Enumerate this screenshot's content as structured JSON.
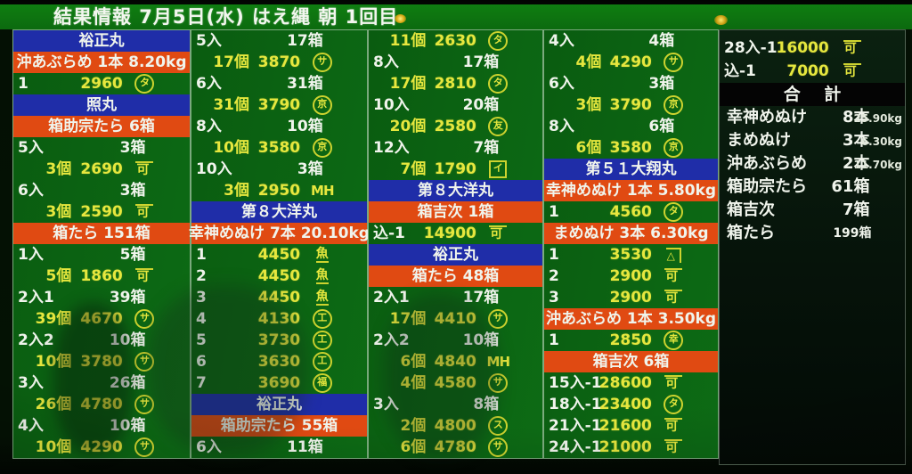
{
  "header": {
    "title": "結果情報  7月5日(水)  はえ縄  朝  1回目"
  },
  "colors": {
    "board_green": "#0c6414",
    "vessel_blue": "#1f2da8",
    "lot_red": "#e04a12",
    "price_yellow": "#e6e73e",
    "text_white": "#f0f4ec",
    "totals_black": "#040404"
  },
  "columns": [
    {
      "name": "results-column-1",
      "rows": [
        {
          "t": "vessel",
          "text": "裕正丸"
        },
        {
          "t": "lot",
          "text": "沖あぶらめ 1本 8.20kg"
        },
        {
          "t": "bid",
          "label": "1",
          "price": "2960",
          "mark": "タ",
          "ms": "circle"
        },
        {
          "t": "vessel",
          "text": "照丸"
        },
        {
          "t": "lot",
          "text": "箱助宗たら 6箱"
        },
        {
          "t": "count",
          "label": "5入",
          "boxes": "3箱"
        },
        {
          "t": "bid",
          "qty": "3個",
          "price": "2690",
          "mark": "可",
          "ms": "overline"
        },
        {
          "t": "count",
          "label": "6入",
          "boxes": "3箱"
        },
        {
          "t": "bid",
          "qty": "3個",
          "price": "2590",
          "mark": "可",
          "ms": "overline"
        },
        {
          "t": "lot",
          "text": "箱たら 151箱"
        },
        {
          "t": "count",
          "label": "1入",
          "boxes": "5箱"
        },
        {
          "t": "bid",
          "qty": "5個",
          "price": "1860",
          "mark": "可",
          "ms": "overline"
        },
        {
          "t": "count",
          "label": "2入1",
          "boxes": "39箱"
        },
        {
          "t": "bid",
          "qty": "39個",
          "price": "4670",
          "mark": "サ",
          "ms": "circle"
        },
        {
          "t": "count",
          "label": "2入2",
          "boxes": "10箱"
        },
        {
          "t": "bid",
          "qty": "10個",
          "price": "3780",
          "mark": "サ",
          "ms": "circle"
        },
        {
          "t": "count",
          "label": "3入",
          "boxes": "26箱"
        },
        {
          "t": "bid",
          "qty": "26個",
          "price": "4780",
          "mark": "サ",
          "ms": "circle"
        },
        {
          "t": "count",
          "label": "4入",
          "boxes": "10箱"
        },
        {
          "t": "bid",
          "qty": "10個",
          "price": "4290",
          "mark": "サ",
          "ms": "circle"
        }
      ]
    },
    {
      "name": "results-column-2",
      "rows": [
        {
          "t": "count",
          "label": "5入",
          "boxes": "17箱"
        },
        {
          "t": "bid",
          "qty": "17個",
          "price": "3870",
          "mark": "サ",
          "ms": "circle"
        },
        {
          "t": "count",
          "label": "6入",
          "boxes": "31箱"
        },
        {
          "t": "bid",
          "qty": "31個",
          "price": "3790",
          "mark": "京",
          "ms": "circle"
        },
        {
          "t": "count",
          "label": "8入",
          "boxes": "10箱"
        },
        {
          "t": "bid",
          "qty": "10個",
          "price": "3580",
          "mark": "京",
          "ms": "circle"
        },
        {
          "t": "count",
          "label": "10入",
          "boxes": "3箱"
        },
        {
          "t": "bid",
          "qty": "3個",
          "price": "2950",
          "mark": "MH",
          "ms": "plain"
        },
        {
          "t": "vessel",
          "text": "第８大洋丸"
        },
        {
          "t": "lot",
          "text": "幸神めぬけ 7本 20.10kg"
        },
        {
          "t": "bid",
          "label": "1",
          "price": "4450",
          "mark": "魚",
          "ms": "underline"
        },
        {
          "t": "bid",
          "label": "2",
          "price": "4450",
          "mark": "魚",
          "ms": "underline"
        },
        {
          "t": "bid",
          "label": "3",
          "price": "4450",
          "mark": "魚",
          "ms": "underline"
        },
        {
          "t": "bid",
          "label": "4",
          "price": "4130",
          "mark": "工",
          "ms": "circle"
        },
        {
          "t": "bid",
          "label": "5",
          "price": "3730",
          "mark": "工",
          "ms": "circle"
        },
        {
          "t": "bid",
          "label": "6",
          "price": "3630",
          "mark": "工",
          "ms": "circle"
        },
        {
          "t": "bid",
          "label": "7",
          "price": "3690",
          "mark": "福",
          "ms": "circle"
        },
        {
          "t": "vessel",
          "text": "裕正丸"
        },
        {
          "t": "lot",
          "text": "箱助宗たら 55箱"
        },
        {
          "t": "count",
          "label": "6入",
          "boxes": "11箱"
        }
      ]
    },
    {
      "name": "results-column-3",
      "rows": [
        {
          "t": "bid",
          "qty": "11個",
          "price": "2630",
          "mark": "タ",
          "ms": "circle"
        },
        {
          "t": "count",
          "label": "8入",
          "boxes": "17箱"
        },
        {
          "t": "bid",
          "qty": "17個",
          "price": "2810",
          "mark": "タ",
          "ms": "circle"
        },
        {
          "t": "count",
          "label": "10入",
          "boxes": "20箱"
        },
        {
          "t": "bid",
          "qty": "20個",
          "price": "2580",
          "mark": "友",
          "ms": "circle"
        },
        {
          "t": "count",
          "label": "12入",
          "boxes": "7箱"
        },
        {
          "t": "bid",
          "qty": "7個",
          "price": "1790",
          "mark": "イ",
          "ms": "box"
        },
        {
          "t": "vessel",
          "text": "第８大洋丸"
        },
        {
          "t": "lot",
          "text": "箱吉次 1箱"
        },
        {
          "t": "bid",
          "label": "込-1",
          "price": "14900",
          "mark": "可",
          "ms": "overline"
        },
        {
          "t": "vessel",
          "text": "裕正丸"
        },
        {
          "t": "lot",
          "text": "箱たら 48箱"
        },
        {
          "t": "count",
          "label": "2入1",
          "boxes": "17箱"
        },
        {
          "t": "bid",
          "qty": "17個",
          "price": "4410",
          "mark": "サ",
          "ms": "circle"
        },
        {
          "t": "count",
          "label": "2入2",
          "boxes": "10箱"
        },
        {
          "t": "bid",
          "qty": "6個",
          "price": "4840",
          "mark": "MH",
          "ms": "plain"
        },
        {
          "t": "bid",
          "qty": "4個",
          "price": "4580",
          "mark": "サ",
          "ms": "circle"
        },
        {
          "t": "count",
          "label": "3入",
          "boxes": "8箱"
        },
        {
          "t": "bid",
          "qty": "2個",
          "price": "4800",
          "mark": "ス",
          "ms": "circle"
        },
        {
          "t": "bid",
          "qty": "6個",
          "price": "4780",
          "mark": "サ",
          "ms": "circle"
        }
      ]
    },
    {
      "name": "results-column-4",
      "rows": [
        {
          "t": "count",
          "label": "4入",
          "boxes": "4箱"
        },
        {
          "t": "bid",
          "qty": "4個",
          "price": "4290",
          "mark": "サ",
          "ms": "circle"
        },
        {
          "t": "count",
          "label": "6入",
          "boxes": "3箱"
        },
        {
          "t": "bid",
          "qty": "3個",
          "price": "3790",
          "mark": "京",
          "ms": "circle"
        },
        {
          "t": "count",
          "label": "8入",
          "boxes": "6箱"
        },
        {
          "t": "bid",
          "qty": "6個",
          "price": "3580",
          "mark": "京",
          "ms": "circle"
        },
        {
          "t": "vessel",
          "text": "第５１大翔丸"
        },
        {
          "t": "lot",
          "text": "幸神めぬけ 1本 5.80kg"
        },
        {
          "t": "bid",
          "label": "1",
          "price": "4560",
          "mark": "タ",
          "ms": "circle"
        },
        {
          "t": "lot",
          "text": "まめぬけ 3本 6.30kg"
        },
        {
          "t": "bid",
          "label": "1",
          "price": "3530",
          "mark": "△",
          "ms": "kane"
        },
        {
          "t": "bid",
          "label": "2",
          "price": "2900",
          "mark": "可",
          "ms": "overline"
        },
        {
          "t": "bid",
          "label": "3",
          "price": "2900",
          "mark": "可",
          "ms": "overline"
        },
        {
          "t": "lot",
          "text": "沖あぶらめ 1本 3.50kg"
        },
        {
          "t": "bid",
          "label": "1",
          "price": "2850",
          "mark": "幸",
          "ms": "circle"
        },
        {
          "t": "lot",
          "text": "箱吉次 6箱"
        },
        {
          "t": "bid",
          "label": "15入-1",
          "price": "28600",
          "mark": "可",
          "ms": "overline"
        },
        {
          "t": "bid",
          "label": "18入-1",
          "price": "23400",
          "mark": "タ",
          "ms": "circle"
        },
        {
          "t": "bid",
          "label": "21入-1",
          "price": "21600",
          "mark": "可",
          "ms": "overline"
        },
        {
          "t": "bid",
          "label": "24入-1",
          "price": "21000",
          "mark": "可",
          "ms": "overline"
        }
      ]
    },
    {
      "name": "totals-column",
      "summary": true,
      "rows": [
        {
          "t": "bid",
          "label": "28入-1",
          "price": "16000",
          "mark": "可",
          "ms": "overline"
        },
        {
          "t": "bid",
          "label": "込-1",
          "price": "7000",
          "mark": "可",
          "ms": "overline"
        },
        {
          "t": "thead",
          "text": "合 計"
        },
        {
          "t": "sum",
          "name": "幸神めぬけ",
          "amount": "8本",
          "kg": "25.90kg"
        },
        {
          "t": "sum",
          "name": "まめぬけ",
          "amount": "3本",
          "kg": "6.30kg"
        },
        {
          "t": "sum",
          "name": "沖あぶらめ",
          "amount": "2本",
          "kg": "11.70kg"
        },
        {
          "t": "sum",
          "name": "箱助宗たら",
          "amount": "61箱"
        },
        {
          "t": "sum",
          "name": "箱吉次",
          "amount": "7箱"
        },
        {
          "t": "sum",
          "name": "箱たら",
          "amount": "199箱",
          "small": true
        }
      ]
    }
  ]
}
